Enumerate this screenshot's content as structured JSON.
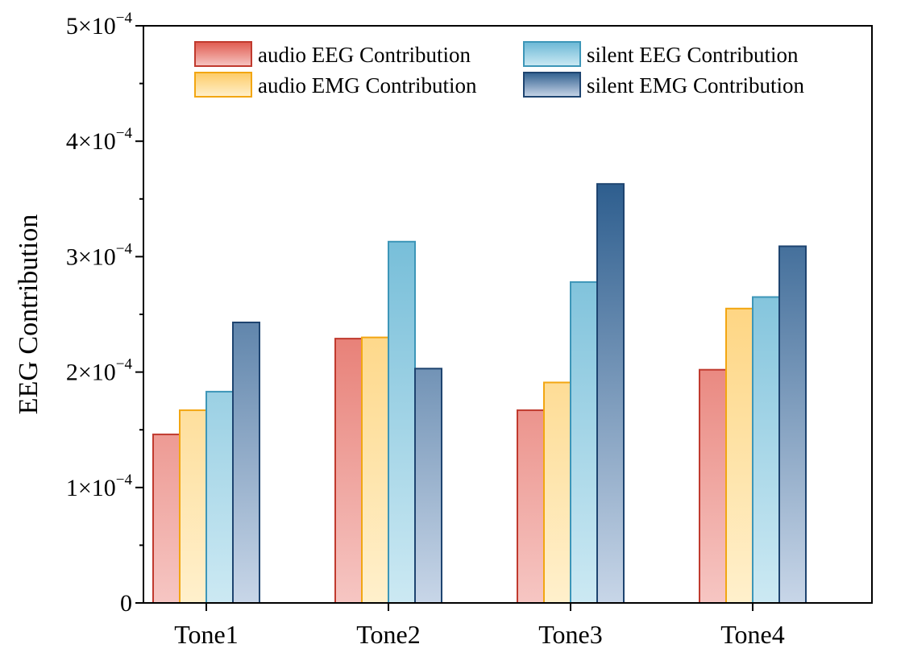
{
  "chart_data": {
    "type": "bar",
    "title": "",
    "xlabel": "",
    "ylabel": "EEG Contribution",
    "ylim": [
      0,
      0.0005
    ],
    "grid": false,
    "legend_position": "top",
    "categories": [
      "Tone1",
      "Tone2",
      "Tone3",
      "Tone4"
    ],
    "y_ticks": [
      {
        "value": 0,
        "mantissa": "0",
        "exponent": ""
      },
      {
        "value": 0.0001,
        "mantissa": "1×10",
        "exponent": "−4"
      },
      {
        "value": 0.0002,
        "mantissa": "2×10",
        "exponent": "−4"
      },
      {
        "value": 0.0003,
        "mantissa": "3×10",
        "exponent": "−4"
      },
      {
        "value": 0.0004,
        "mantissa": "4×10",
        "exponent": "−4"
      },
      {
        "value": 0.0005,
        "mantissa": "5×10",
        "exponent": "−4"
      }
    ],
    "series": [
      {
        "name": "audio EEG Contribution",
        "key": "audio-eeg",
        "top_color": "#e05a4e",
        "bottom_color": "#f6c6c3",
        "stroke": "#c03a2e",
        "values": [
          0.000146,
          0.000229,
          0.000167,
          0.000202
        ]
      },
      {
        "name": "audio EMG Contribution",
        "key": "audio-emg",
        "top_color": "#fdcb66",
        "bottom_color": "#fff0cc",
        "stroke": "#f2a612",
        "values": [
          0.000167,
          0.00023,
          0.000191,
          0.000255
        ]
      },
      {
        "name": "silent EEG Contribution",
        "key": "silent-eeg",
        "top_color": "#6bb8d5",
        "bottom_color": "#cce9f3",
        "stroke": "#3d96b8",
        "values": [
          0.000183,
          0.000313,
          0.000278,
          0.000265
        ]
      },
      {
        "name": "silent EMG Contribution",
        "key": "silent-emg",
        "top_color": "#2f5f8f",
        "bottom_color": "#c8d6e8",
        "stroke": "#1e4470",
        "values": [
          0.000243,
          0.000203,
          0.000363,
          0.000309
        ]
      }
    ]
  }
}
